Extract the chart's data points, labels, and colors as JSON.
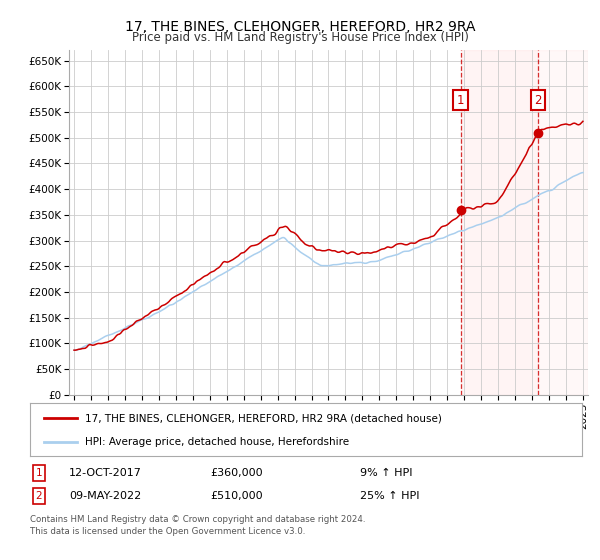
{
  "title": "17, THE BINES, CLEHONGER, HEREFORD, HR2 9RA",
  "subtitle": "Price paid vs. HM Land Registry's House Price Index (HPI)",
  "ylim": [
    0,
    670000
  ],
  "xlim": [
    1994.7,
    2025.3
  ],
  "yticks": [
    0,
    50000,
    100000,
    150000,
    200000,
    250000,
    300000,
    350000,
    400000,
    450000,
    500000,
    550000,
    600000,
    650000
  ],
  "ytick_labels": [
    "£0",
    "£50K",
    "£100K",
    "£150K",
    "£200K",
    "£250K",
    "£300K",
    "£350K",
    "£400K",
    "£450K",
    "£500K",
    "£550K",
    "£600K",
    "£650K"
  ],
  "xticks": [
    1995,
    1996,
    1997,
    1998,
    1999,
    2000,
    2001,
    2002,
    2003,
    2004,
    2005,
    2006,
    2007,
    2008,
    2009,
    2010,
    2011,
    2012,
    2013,
    2014,
    2015,
    2016,
    2017,
    2018,
    2019,
    2020,
    2021,
    2022,
    2023,
    2024,
    2025
  ],
  "hpi_color": "#aacfee",
  "price_color": "#cc0000",
  "marker_color": "#cc0000",
  "vline_color": "#cc0000",
  "annotation_box_color": "#cc0000",
  "grid_color": "#cccccc",
  "background_color": "#ffffff",
  "plot_bg_color": "#ffffff",
  "sale1_x": 2017.79,
  "sale1_y": 360000,
  "sale1_label": "1",
  "sale1_date": "12-OCT-2017",
  "sale1_price": "£360,000",
  "sale1_hpi": "9% ↑ HPI",
  "sale2_x": 2022.36,
  "sale2_y": 510000,
  "sale2_label": "2",
  "sale2_date": "09-MAY-2022",
  "sale2_price": "£510,000",
  "sale2_hpi": "25% ↑ HPI",
  "legend_line1": "17, THE BINES, CLEHONGER, HEREFORD, HR2 9RA (detached house)",
  "legend_line2": "HPI: Average price, detached house, Herefordshire",
  "footer1": "Contains HM Land Registry data © Crown copyright and database right 2024.",
  "footer2": "This data is licensed under the Open Government Licence v3.0."
}
